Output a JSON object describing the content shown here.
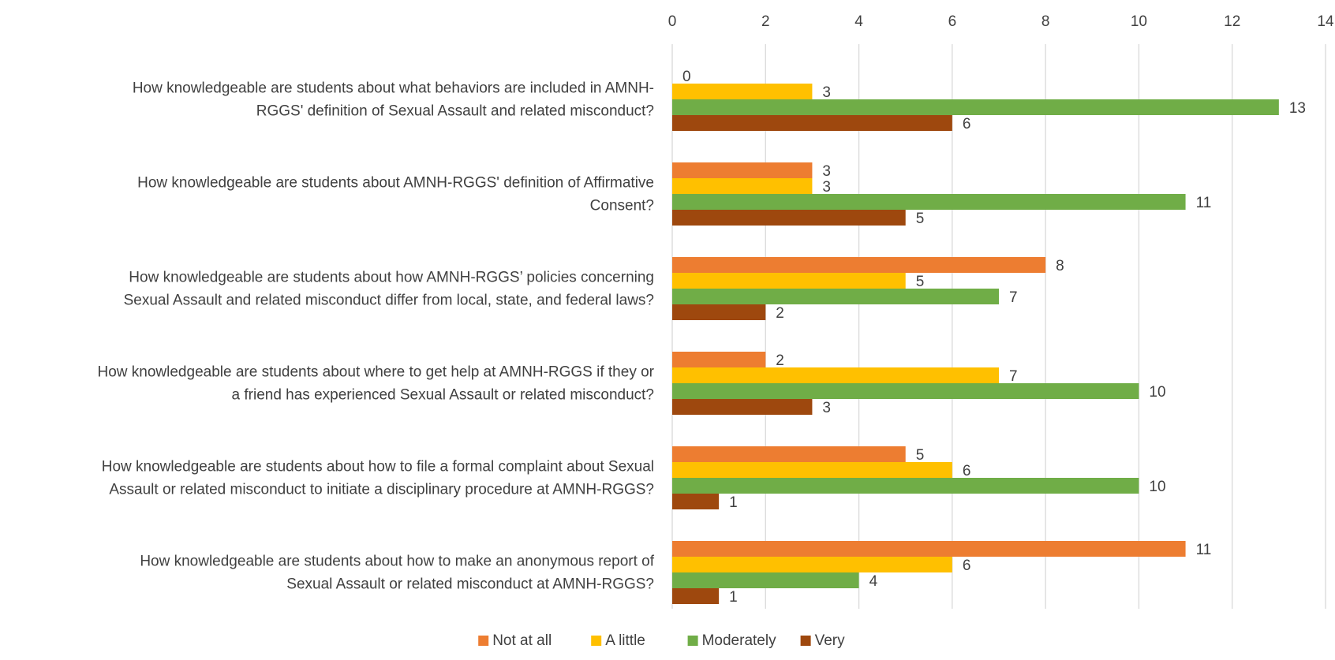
{
  "chart_data": {
    "type": "bar",
    "orientation": "horizontal",
    "categories": [
      [
        "How knowledgeable are students about what behaviors are included in AMNH-",
        "RGGS' definition of Sexual Assault and related misconduct?"
      ],
      [
        "How knowledgeable are students about AMNH-RGGS' definition of Affirmative",
        "Consent?"
      ],
      [
        "How knowledgeable are students about how AMNH-RGGS’ policies concerning",
        "Sexual Assault and related misconduct differ from local, state, and federal laws?"
      ],
      [
        "How knowledgeable are students about where to get help at AMNH-RGGS if they or",
        "a friend has experienced Sexual Assault or related misconduct?"
      ],
      [
        "How knowledgeable are students about how to file a formal complaint about Sexual",
        "Assault or related misconduct to initiate a disciplinary procedure at AMNH-RGGS?"
      ],
      [
        "How knowledgeable are students about how to make an anonymous report of",
        "Sexual Assault or related misconduct at AMNH-RGGS?"
      ]
    ],
    "series": [
      {
        "name": "Not at all",
        "color": "#ED7D31",
        "values": [
          0,
          3,
          8,
          2,
          5,
          11
        ]
      },
      {
        "name": "A little",
        "color": "#FFC000",
        "values": [
          3,
          3,
          5,
          7,
          6,
          6
        ]
      },
      {
        "name": "Moderately",
        "color": "#70AD47",
        "values": [
          13,
          11,
          7,
          10,
          10,
          4
        ]
      },
      {
        "name": "Very",
        "color": "#9E480E",
        "values": [
          6,
          5,
          2,
          3,
          1,
          1
        ]
      }
    ],
    "xlim": [
      0,
      14
    ],
    "xticks": [
      0,
      2,
      4,
      6,
      8,
      10,
      12,
      14
    ],
    "grid": true,
    "axis_position": "top",
    "legend": "bottom-center",
    "title": "",
    "xlabel": "",
    "ylabel": ""
  }
}
